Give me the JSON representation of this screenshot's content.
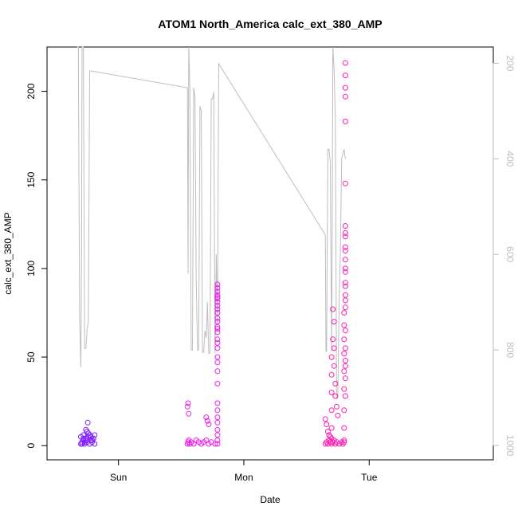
{
  "chart_data": {
    "type": "scatter",
    "title": "ATOM1 North_America calc_ext_380_AMP",
    "xlabel": "Date",
    "ylabel": "calc_ext_380_AMP",
    "x_unit": "day",
    "xlim": [
      -0.57,
      2.99
    ],
    "ylim": [
      -8,
      225
    ],
    "x_ticks": [
      {
        "value": 0,
        "label": "Sun"
      },
      {
        "value": 1,
        "label": "Mon"
      },
      {
        "value": 2,
        "label": "Tue"
      }
    ],
    "y_ticks": [
      0,
      50,
      100,
      150,
      200
    ],
    "y2_ticks": [
      200,
      400,
      600,
      800,
      1000
    ],
    "y2_range": [
      1030,
      166
    ],
    "grid": false,
    "colors": {
      "line": "#bebebe",
      "cluster_sun": "#7f1fff",
      "cluster_mon": "#ee1fee",
      "cluster_tue": "#ff1fb4",
      "axis": "#000000"
    },
    "series": [
      {
        "kind": "points",
        "color": "#7f1fff",
        "x": [
          -0.3,
          -0.29,
          -0.28,
          -0.27,
          -0.26,
          -0.25,
          -0.24,
          -0.23,
          -0.22,
          -0.21,
          -0.2,
          -0.19,
          -0.3,
          -0.28,
          -0.26,
          -0.24,
          -0.22,
          -0.2,
          -0.25,
          -0.23,
          -0.27,
          -0.21,
          -0.29,
          -0.245,
          -0.26,
          -0.22,
          -0.28,
          -0.19
        ],
        "y": [
          1,
          2,
          3,
          1,
          4,
          2,
          5,
          1,
          3,
          2,
          4,
          1,
          5,
          6,
          3,
          7,
          5,
          4,
          8,
          6,
          2,
          3,
          1,
          13,
          9,
          5,
          4,
          6
        ]
      },
      {
        "kind": "points",
        "color": "#ee1fee",
        "x": [
          0.55,
          0.555,
          0.56,
          0.57,
          0.58,
          0.6,
          0.62,
          0.64,
          0.66,
          0.68,
          0.7,
          0.72,
          0.74,
          0.77,
          0.55,
          0.555,
          0.56,
          0.7,
          0.71,
          0.72,
          0.79,
          0.79,
          0.79,
          0.79,
          0.79,
          0.79,
          0.79,
          0.79,
          0.79,
          0.79,
          0.79,
          0.79,
          0.79,
          0.79,
          0.79,
          0.79,
          0.79,
          0.79,
          0.79,
          0.79,
          0.79,
          0.79,
          0.79,
          0.79,
          0.79,
          0.79,
          0.79,
          0.79,
          0.79,
          0.79
        ],
        "y": [
          1,
          2,
          3,
          1,
          2,
          1,
          3,
          2,
          1,
          2,
          3,
          1,
          2,
          1,
          22,
          24,
          18,
          16,
          14,
          12,
          1,
          3,
          6,
          9,
          13,
          16,
          20,
          24,
          35,
          42,
          47,
          50,
          55,
          60,
          64,
          67,
          70,
          72,
          75,
          77,
          79,
          81,
          83,
          85,
          87,
          89,
          91,
          84,
          66,
          58
        ]
      },
      {
        "kind": "points",
        "color": "#ff1fb4",
        "x": [
          1.65,
          1.66,
          1.67,
          1.68,
          1.69,
          1.7,
          1.71,
          1.72,
          1.73,
          1.74,
          1.76,
          1.78,
          1.79,
          1.8,
          1.65,
          1.66,
          1.67,
          1.68,
          1.69,
          1.7,
          1.7,
          1.7,
          1.7,
          1.7,
          1.7,
          1.71,
          1.71,
          1.72,
          1.72,
          1.72,
          1.73,
          1.73,
          1.74,
          1.75,
          1.8,
          1.8,
          1.8,
          1.8,
          1.8,
          1.8,
          1.8,
          1.8,
          1.8,
          1.81,
          1.81,
          1.81,
          1.81,
          1.81,
          1.81,
          1.81,
          1.81,
          1.81,
          1.81,
          1.81,
          1.81,
          1.81,
          1.81,
          1.81,
          1.81,
          1.81,
          1.81,
          1.81,
          1.81,
          1.81,
          1.81,
          1.81,
          1.81,
          1.81
        ],
        "y": [
          1,
          2,
          1,
          3,
          2,
          1,
          2,
          3,
          1,
          2,
          1,
          2,
          1,
          3,
          15,
          12,
          8,
          6,
          5,
          4,
          10,
          20,
          30,
          40,
          50,
          60,
          77,
          70,
          55,
          45,
          35,
          28,
          22,
          17,
          2,
          10,
          20,
          32,
          42,
          52,
          60,
          68,
          75,
          82,
          90,
          98,
          105,
          112,
          118,
          124,
          45,
          55,
          65,
          78,
          85,
          92,
          100,
          110,
          120,
          148,
          183,
          197,
          202,
          209,
          216,
          38,
          48,
          28
        ]
      },
      {
        "kind": "line",
        "color": "#bebebe",
        "x": [
          -0.33,
          -0.32,
          -0.31,
          -0.3,
          -0.295,
          -0.29,
          -0.28,
          -0.27,
          -0.26,
          -0.25,
          -0.24,
          -0.23,
          -0.22,
          0.55,
          0.555,
          0.56,
          0.57,
          0.58,
          0.59,
          0.6,
          0.61,
          0.62,
          0.63,
          0.64,
          0.65,
          0.66,
          0.67,
          0.68,
          0.69,
          0.7,
          0.71,
          0.72,
          0.73,
          0.74,
          0.75,
          0.76,
          0.77,
          0.78,
          0.79,
          0.8,
          1.65,
          1.655,
          1.66,
          1.67,
          1.68,
          1.69,
          1.7,
          1.705,
          1.71,
          1.72,
          1.73,
          1.74,
          1.75,
          1.76,
          1.77,
          1.78,
          1.79,
          1.8,
          1.81
        ],
        "y2": [
          166,
          166,
          736,
          836,
          600,
          166,
          166,
          797,
          797,
          757,
          740,
          216,
          216,
          251,
          640,
          166,
          251,
          800,
          800,
          251,
          270,
          651,
          800,
          800,
          290,
          300,
          805,
          805,
          760,
          775,
          700,
          807,
          807,
          275,
          275,
          260,
          807,
          600,
          746,
          201,
          559,
          803,
          803,
          380,
          380,
          409,
          803,
          540,
          166,
          210,
          320,
          900,
          900,
          700,
          600,
          400,
          390,
          380,
          400
        ]
      }
    ]
  }
}
